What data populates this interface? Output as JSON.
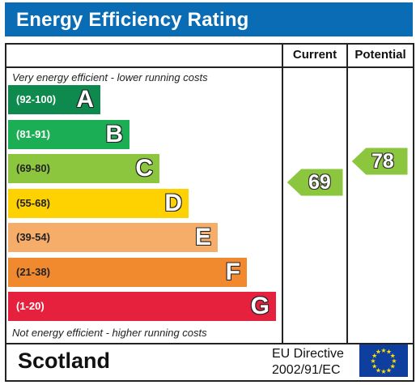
{
  "title": "Energy Efficiency Rating",
  "columns": {
    "current": "Current",
    "potential": "Potential"
  },
  "top_caption": "Very energy efficient - lower running costs",
  "bottom_caption": "Not energy efficient - higher running costs",
  "bands": [
    {
      "range": "(92-100)",
      "letter": "A",
      "color": "#0f8a4e",
      "range_color": "#ffffff"
    },
    {
      "range": "(81-91)",
      "letter": "B",
      "color": "#1cae55",
      "range_color": "#ffffff"
    },
    {
      "range": "(69-80)",
      "letter": "C",
      "color": "#8cc63f",
      "range_color": "#222222"
    },
    {
      "range": "(55-68)",
      "letter": "D",
      "color": "#fed201",
      "range_color": "#222222"
    },
    {
      "range": "(39-54)",
      "letter": "E",
      "color": "#f7ad6a",
      "range_color": "#222222"
    },
    {
      "range": "(21-38)",
      "letter": "F",
      "color": "#f18a2e",
      "range_color": "#222222"
    },
    {
      "range": "(1-20)",
      "letter": "G",
      "color": "#e5213e",
      "range_color": "#ffffff"
    }
  ],
  "current": {
    "value": "69",
    "color": "#8cc63f"
  },
  "potential": {
    "value": "78",
    "color": "#8cc63f"
  },
  "footer": {
    "country": "Scotland",
    "directive_line1": "EU Directive",
    "directive_line2": "2002/91/EC"
  },
  "colors": {
    "title_bar": "#0a6cb5",
    "flag": "#0f3f9e",
    "flag_stars": "#ffde00"
  }
}
